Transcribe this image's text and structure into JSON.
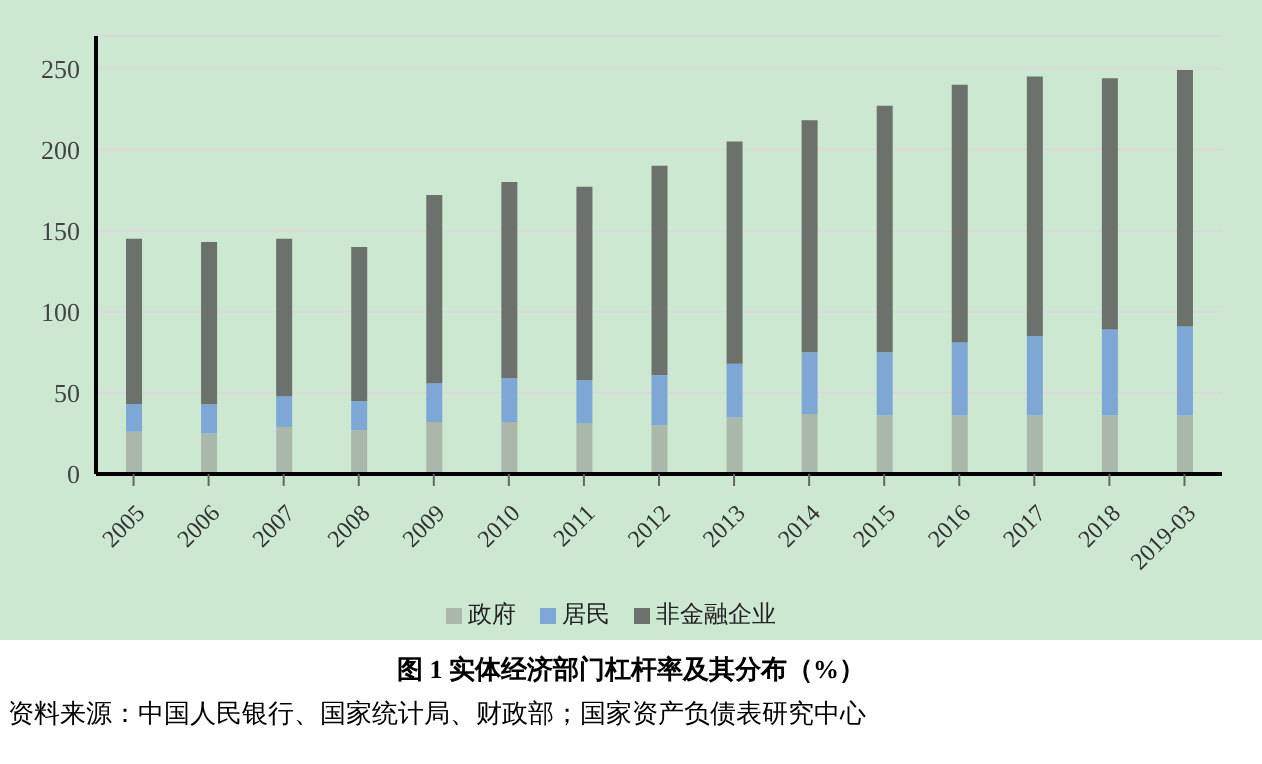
{
  "chart_data": {
    "type": "bar",
    "stacked": true,
    "title": "图 1  实体经济部门杠杆率及其分布（%）",
    "annotations": [
      "资料来源：中国人民银行、国家统计局、财政部；国家资产负债表研究中心"
    ],
    "categories": [
      "2005",
      "2006",
      "2007",
      "2008",
      "2009",
      "2010",
      "2011",
      "2012",
      "2013",
      "2014",
      "2015",
      "2016",
      "2017",
      "2018",
      "2019-03"
    ],
    "series": [
      {
        "name": "政府",
        "color": "#a9b8a8",
        "values": [
          26,
          25,
          29,
          27,
          32,
          32,
          31,
          30,
          35,
          37,
          36,
          36,
          36,
          36,
          36
        ]
      },
      {
        "name": "居民",
        "color": "#7fa7d6",
        "values": [
          17,
          18,
          19,
          18,
          24,
          27,
          27,
          31,
          33,
          38,
          39,
          45,
          49,
          53,
          55
        ]
      },
      {
        "name": "非金融企业",
        "color": "#6b716b",
        "values": [
          102,
          100,
          97,
          95,
          116,
          121,
          119,
          129,
          137,
          143,
          152,
          159,
          160,
          155,
          158
        ]
      }
    ],
    "ylim": [
      0,
      270
    ],
    "yticks": [
      0,
      50,
      100,
      150,
      200,
      250
    ],
    "grid": "y",
    "legend": "bottom"
  }
}
